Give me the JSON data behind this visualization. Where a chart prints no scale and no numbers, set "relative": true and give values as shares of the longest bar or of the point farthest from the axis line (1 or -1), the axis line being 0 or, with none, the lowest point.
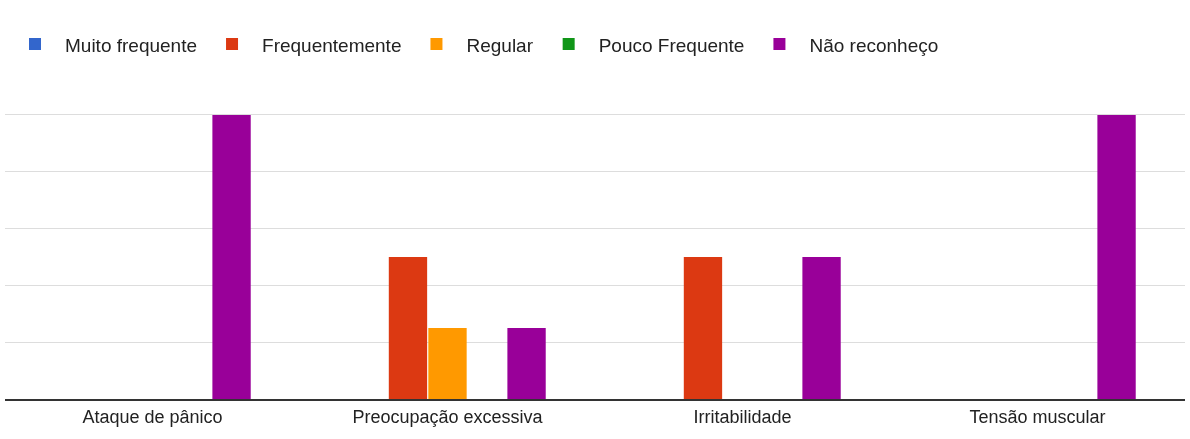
{
  "chart_data": {
    "type": "bar",
    "relative": true,
    "grid": true,
    "legend": "top left",
    "categories": [
      "Ataque de pânico",
      "Preocupação excessiva",
      "Irritabilidade",
      "Tensão muscular"
    ],
    "series": [
      {
        "name": "Muito frequente",
        "color": "#3366cc",
        "values": [
          0,
          0,
          0,
          0
        ]
      },
      {
        "name": "Frequentemente",
        "color": "#dc3912",
        "values": [
          0,
          0.5,
          0.5,
          0
        ]
      },
      {
        "name": "Regular",
        "color": "#ff9900",
        "values": [
          0,
          0.25,
          0,
          0
        ]
      },
      {
        "name": "Pouco Frequente",
        "color": "#109618",
        "values": [
          0,
          0,
          0,
          0
        ]
      },
      {
        "name": "Não reconheço",
        "color": "#990099",
        "values": [
          1,
          0.25,
          0.5,
          1
        ]
      }
    ]
  }
}
